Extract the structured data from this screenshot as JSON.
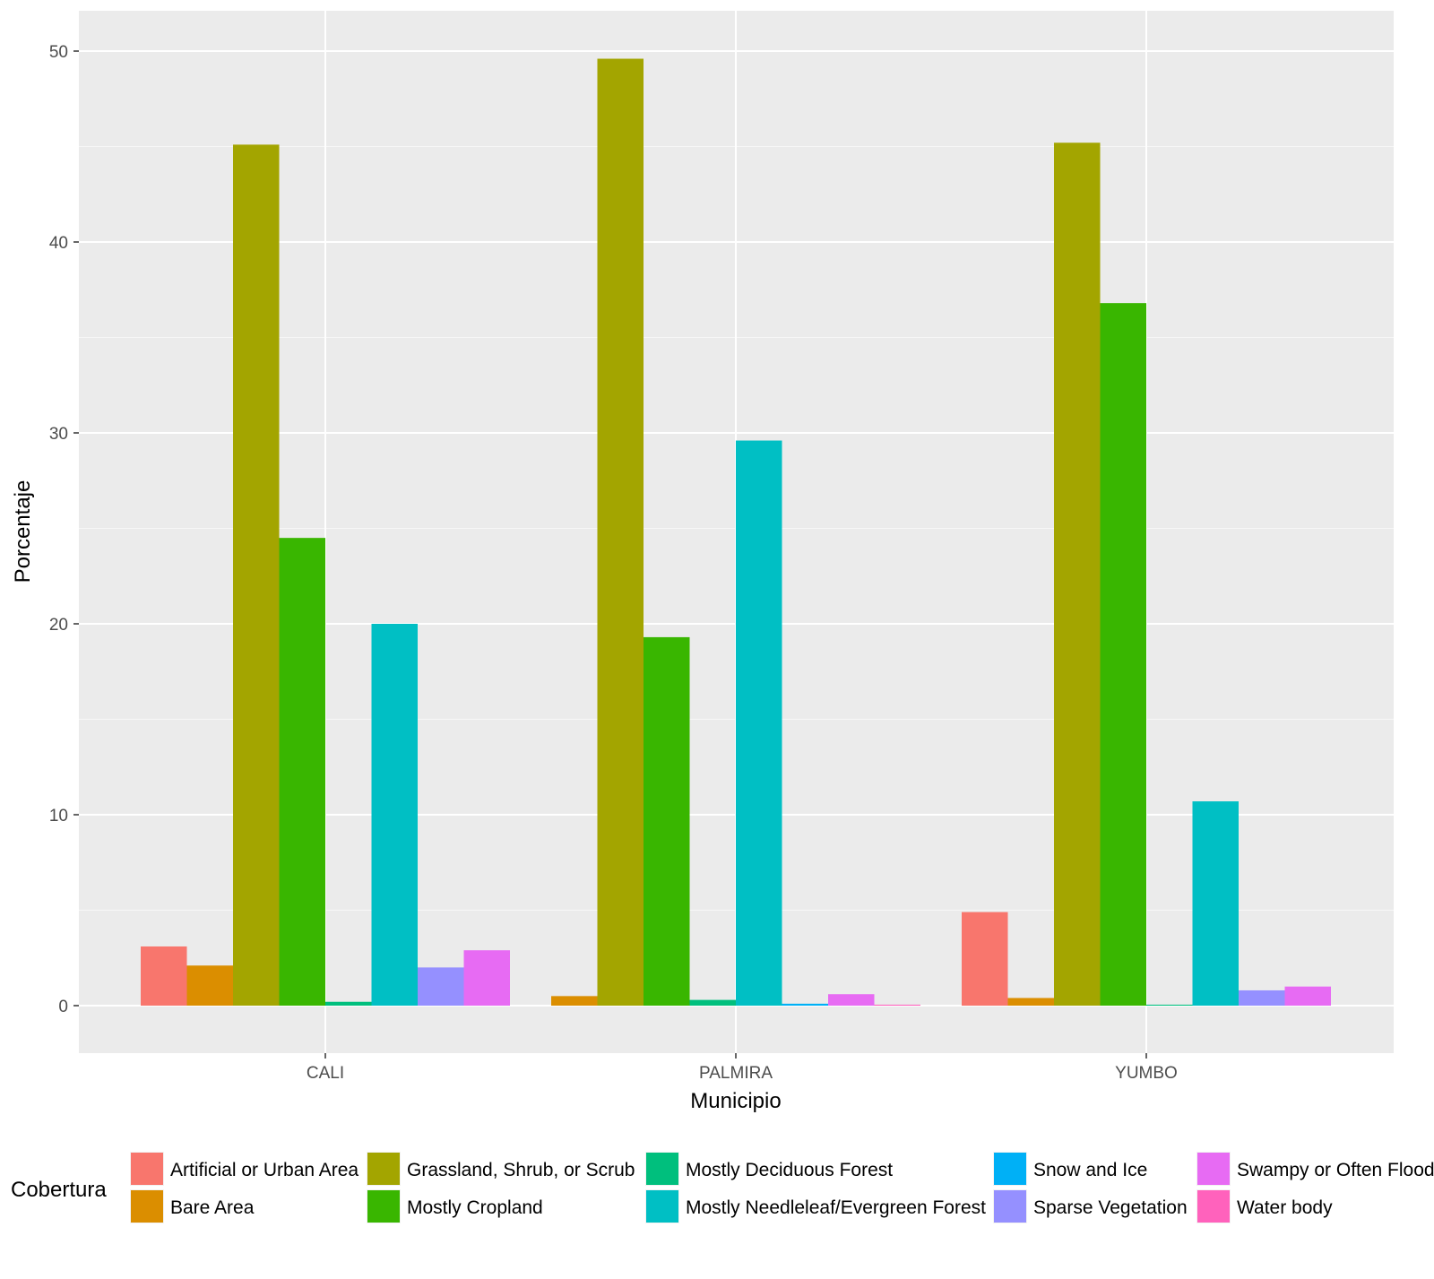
{
  "chart_data": {
    "type": "bar",
    "xlabel": "Municipio",
    "ylabel": "Porcentaje",
    "ylim": [
      -2.5,
      52
    ],
    "yticks": [
      0,
      10,
      20,
      30,
      40,
      50
    ],
    "grid": true,
    "legend_position": "bottom",
    "legend_title": "Cobertura",
    "categories": [
      "CALI",
      "PALMIRA",
      "YUMBO"
    ],
    "series": [
      {
        "name": "Artificial or Urban Area",
        "color": "#F8766D",
        "values": [
          3.1,
          null,
          4.9
        ]
      },
      {
        "name": "Bare Area",
        "color": "#DB8E00",
        "values": [
          2.1,
          0.5,
          0.4
        ]
      },
      {
        "name": "Grassland, Shrub, or Scrub",
        "color": "#A3A500",
        "values": [
          45.1,
          49.6,
          45.2
        ]
      },
      {
        "name": "Mostly Cropland",
        "color": "#39B600",
        "values": [
          24.5,
          19.3,
          36.8
        ]
      },
      {
        "name": "Mostly Deciduous Forest",
        "color": "#00BF7D",
        "values": [
          0.2,
          0.3,
          0.05
        ]
      },
      {
        "name": "Mostly Needleleaf/Evergreen Forest",
        "color": "#00BFC4",
        "values": [
          20.0,
          29.6,
          10.7
        ]
      },
      {
        "name": "Snow and Ice",
        "color": "#00B0F6",
        "values": [
          null,
          0.1,
          null
        ]
      },
      {
        "name": "Sparse Vegetation",
        "color": "#9590FF",
        "values": [
          2.0,
          null,
          0.8
        ]
      },
      {
        "name": "Swampy or Often Flooded Vegetation",
        "color": "#E76BF3",
        "values": [
          2.9,
          0.6,
          1.0
        ]
      },
      {
        "name": "Water body",
        "color": "#FF62BC",
        "values": [
          null,
          0.05,
          null
        ]
      }
    ]
  }
}
